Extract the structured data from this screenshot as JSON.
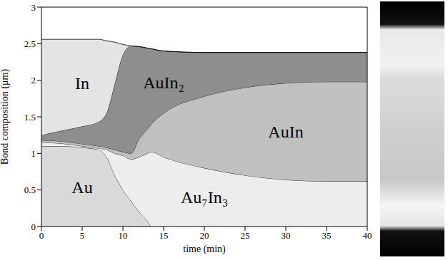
{
  "chart_data": {
    "type": "area",
    "stacked": true,
    "x_label": "time (min)",
    "y_label": "Bond composition (μm)",
    "x": [
      0,
      2,
      5,
      7,
      8,
      9,
      10,
      11,
      12,
      13,
      13.5,
      15,
      20,
      25,
      30,
      35,
      40
    ],
    "xlim": [
      0,
      40
    ],
    "xticks": [
      0,
      5,
      10,
      15,
      20,
      25,
      30,
      35,
      40
    ],
    "ylim": [
      0,
      3
    ],
    "yticks": [
      0,
      0.5,
      1,
      1.5,
      2,
      2.5,
      3
    ],
    "series": [
      {
        "name": "Au",
        "color": "#d9d9d9",
        "values": [
          1.1,
          1.1,
          1.08,
          1.05,
          0.95,
          0.7,
          0.5,
          0.35,
          0.2,
          0.08,
          0,
          0,
          0,
          0,
          0,
          0,
          0
        ]
      },
      {
        "name": "Au₇In₃",
        "color": "#ededed",
        "values": [
          0.05,
          0.04,
          0.02,
          0.02,
          0.1,
          0.3,
          0.47,
          0.57,
          0.75,
          0.92,
          1.02,
          0.95,
          0.8,
          0.7,
          0.64,
          0.62,
          0.62
        ]
      },
      {
        "name": "AuIn",
        "color": "#c0c0c0",
        "values": [
          0.03,
          0.03,
          0.03,
          0.03,
          0.03,
          0.05,
          0.05,
          0.08,
          0.25,
          0.33,
          0.38,
          0.6,
          0.98,
          1.2,
          1.32,
          1.36,
          1.36
        ]
      },
      {
        "name": "AuIn₂",
        "color": "#8e8e8e",
        "values": [
          0.07,
          0.13,
          0.24,
          0.33,
          0.47,
          0.9,
          1.33,
          1.47,
          1.26,
          1.11,
          1.03,
          0.85,
          0.6,
          0.48,
          0.42,
          0.4,
          0.4
        ]
      },
      {
        "name": "In",
        "color": "#e4e4e4",
        "values": [
          1.31,
          1.26,
          1.19,
          1.13,
          0.99,
          0.57,
          0.14,
          0,
          0,
          0,
          0,
          0,
          0,
          0,
          0,
          0,
          0
        ]
      }
    ]
  }
}
